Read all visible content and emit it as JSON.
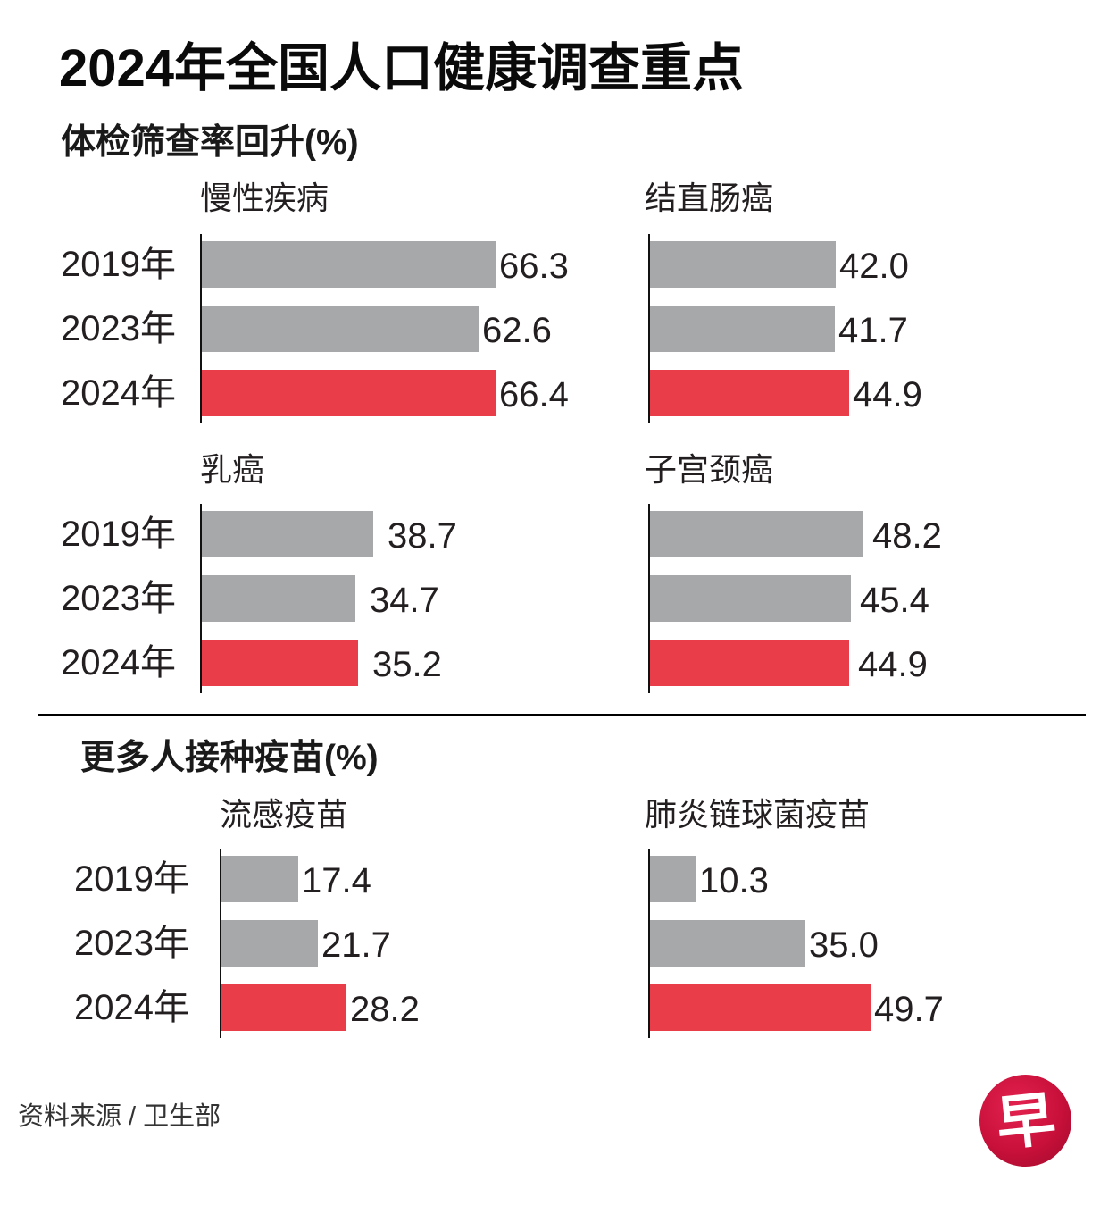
{
  "title": "2024年全国人口健康调查重点",
  "colors": {
    "previous": "#a7a8aa",
    "current": "#ea3d4a",
    "axis": "#111111",
    "logo": "#c8103a"
  },
  "source": "资料来源 / 卫生部",
  "logo_glyph": "早",
  "chart_data": {
    "type": "bar",
    "orientation": "horizontal",
    "title": "2024年全国人口健康调查重点",
    "unit": "%",
    "categories": [
      "2019年",
      "2023年",
      "2024年"
    ],
    "highlight_category": "2024年",
    "sections": [
      {
        "title": "体检筛查率回升(%)",
        "panels": [
          {
            "name": "慢性疾病",
            "values": [
              66.3,
              62.6,
              66.4
            ],
            "labels": [
              "66.3",
              "62.6",
              "66.4"
            ]
          },
          {
            "name": "结直肠癌",
            "values": [
              42.0,
              41.7,
              44.9
            ],
            "labels": [
              "42.0",
              "41.7",
              "44.9"
            ]
          },
          {
            "name": "乳癌",
            "values": [
              38.7,
              34.7,
              35.2
            ],
            "labels": [
              "38.7",
              "34.7",
              "35.2"
            ]
          },
          {
            "name": "子宫颈癌",
            "values": [
              48.2,
              45.4,
              44.9
            ],
            "labels": [
              "48.2",
              "45.4",
              "44.9"
            ]
          }
        ]
      },
      {
        "title": "更多人接种疫苗(%)",
        "panels": [
          {
            "name": "流感疫苗",
            "values": [
              17.4,
              21.7,
              28.2
            ],
            "labels": [
              "17.4",
              "21.7",
              "28.2"
            ]
          },
          {
            "name": "肺炎链球菌疫苗",
            "values": [
              10.3,
              35.0,
              49.7
            ],
            "labels": [
              "10.3",
              "35.0",
              "49.7"
            ]
          }
        ]
      }
    ],
    "xlim": [
      0,
      70
    ],
    "grid": false,
    "legend": "none"
  }
}
